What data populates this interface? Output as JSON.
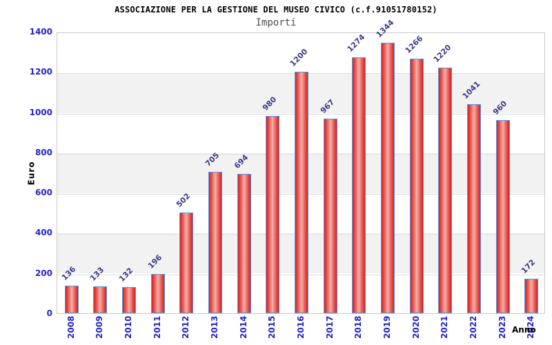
{
  "chart_data": {
    "type": "bar",
    "title": "ASSOCIAZIONE PER LA GESTIONE DEL MUSEO CIVICO (c.f.91051780152)",
    "subtitle": "Importi",
    "xlabel": "Anno",
    "ylabel": "Euro",
    "categories": [
      "2008",
      "2009",
      "2010",
      "2011",
      "2012",
      "2013",
      "2014",
      "2015",
      "2016",
      "2017",
      "2018",
      "2019",
      "2020",
      "2021",
      "2022",
      "2023",
      "2024"
    ],
    "values": [
      136,
      133,
      132,
      196,
      502,
      705,
      694,
      980,
      1200,
      967,
      1274,
      1344,
      1266,
      1220,
      1041,
      960,
      172
    ],
    "ylim": [
      0,
      1400
    ],
    "ytick_step": 200,
    "yticks": [
      1400,
      1200,
      1000,
      800,
      600,
      400,
      200,
      0
    ],
    "grid": "horizontal-bands",
    "legend": "none",
    "colors": {
      "bar_fill_edge": "#d81e1e",
      "bar_fill_mid": "#ea6a62",
      "bar_fill_center": "#f2b0ab",
      "bar_border": "#4d9be6",
      "axis_label": "#2424cc",
      "value_label": "#3a3a87",
      "band": "#f2f2f2",
      "gridline": "#dcdcdc",
      "plot_border": "#c9c9c9",
      "title": "#000000",
      "subtitle": "#4d4d4d"
    }
  }
}
